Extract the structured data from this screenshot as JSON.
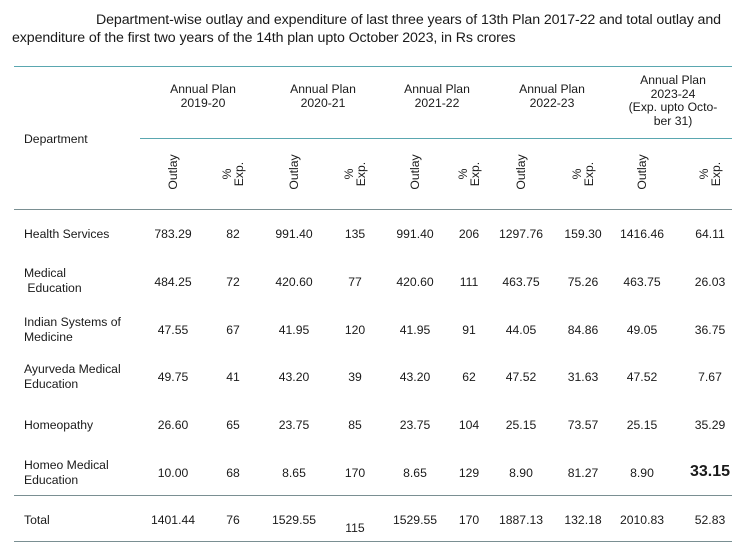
{
  "caption": "Department-wise outlay and expenditure of last three years of 13th Plan 2017-22 and total outlay and expenditure of the first two years of the 14th plan upto October 2023, in Rs  crores",
  "header": {
    "department": "Department",
    "plans": [
      {
        "line1": "Annual Plan",
        "line2": "2019-20",
        "line3": "",
        "line4": ""
      },
      {
        "line1": "Annual Plan",
        "line2": "2020-21",
        "line3": "",
        "line4": ""
      },
      {
        "line1": "Annual Plan",
        "line2": "2021-22",
        "line3": "",
        "line4": ""
      },
      {
        "line1": "Annual Plan",
        "line2": "2022-23",
        "line3": "",
        "line4": ""
      },
      {
        "line1": "Annual Plan",
        "line2": "2023-24",
        "line3": "(Exp. upto Octo-",
        "line4": "ber 31)"
      }
    ],
    "outlay": "Outlay",
    "pct_exp": "%\nExp."
  },
  "rows": [
    {
      "label": "Health Services",
      "values": [
        "783.29",
        "82",
        "991.40",
        "135",
        "991.40",
        "206",
        "1297.76",
        "159.30",
        "1416.46",
        "64.11"
      ]
    },
    {
      "label": "Medical\n Education",
      "values": [
        "484.25",
        "72",
        "420.60",
        "77",
        "420.60",
        "111",
        "463.75",
        "75.26",
        "463.75",
        "26.03"
      ]
    },
    {
      "label": "Indian Systems of\nMedicine",
      "values": [
        "47.55",
        "67",
        "41.95",
        "120",
        "41.95",
        "91",
        "44.05",
        "84.86",
        "49.05",
        "36.75"
      ]
    },
    {
      "label": "Ayurveda Medical\nEducation",
      "values": [
        "49.75",
        "41",
        "43.20",
        "39",
        "43.20",
        "62",
        "47.52",
        "31.63",
        "47.52",
        "7.67"
      ]
    },
    {
      "label": "Homeopathy",
      "values": [
        "26.60",
        "65",
        "23.75",
        "85",
        "23.75",
        "104",
        "25.15",
        "73.57",
        "25.15",
        "35.29"
      ]
    },
    {
      "label": "Homeo Medical\nEducation",
      "values": [
        "10.00",
        "68",
        "8.65",
        "170",
        "8.65",
        "129",
        "8.90",
        "81.27",
        "8.90",
        "33.15"
      ]
    },
    {
      "label": "Total",
      "values": [
        "1401.44",
        "76",
        "1529.55",
        "115",
        "1529.55",
        "170",
        "1887.13",
        "132.18",
        "2010.83",
        "52.83"
      ]
    }
  ]
}
